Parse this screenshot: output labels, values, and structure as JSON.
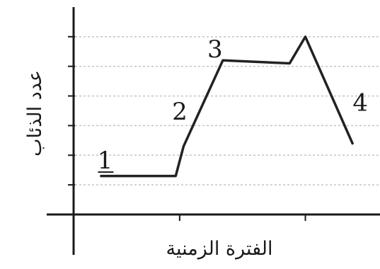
{
  "chart_data": {
    "type": "line",
    "xlabel": "الفترة الزمنية",
    "ylabel": "عدد الذئاب",
    "x": [
      0.0,
      0.95,
      1.05,
      1.55,
      2.4,
      2.6,
      3.2
    ],
    "y": [
      1.3,
      1.3,
      2.3,
      5.2,
      5.1,
      6.0,
      2.4
    ],
    "xlim": [
      -0.35,
      3.55
    ],
    "ylim": [
      0,
      7
    ],
    "ytick_values": [
      1,
      2,
      3,
      4,
      5,
      6
    ],
    "xtick_values": [
      1.0,
      2.6
    ],
    "grid": true,
    "grid_style": "dashed-horizontal",
    "annotations": [
      {
        "text": "1",
        "x": 0.05,
        "y": 1.55
      },
      {
        "text": "2",
        "x": 1.0,
        "y": 3.2
      },
      {
        "text": "3",
        "x": 1.45,
        "y": 5.3
      },
      {
        "text": "4",
        "x": 3.3,
        "y": 3.5
      }
    ]
  }
}
